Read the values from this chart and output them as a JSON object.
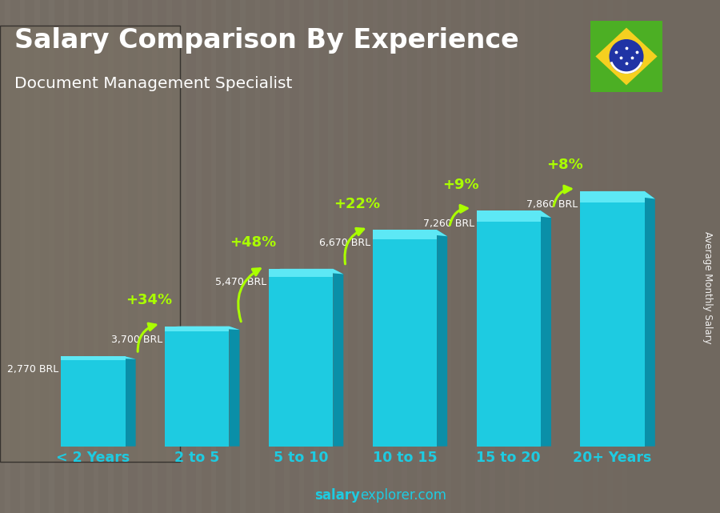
{
  "title": "Salary Comparison By Experience",
  "subtitle": "Document Management Specialist",
  "categories": [
    "< 2 Years",
    "2 to 5",
    "5 to 10",
    "10 to 15",
    "15 to 20",
    "20+ Years"
  ],
  "values": [
    2770,
    3700,
    5470,
    6670,
    7260,
    7860
  ],
  "value_labels": [
    "2,770 BRL",
    "3,700 BRL",
    "5,470 BRL",
    "6,670 BRL",
    "7,260 BRL",
    "7,860 BRL"
  ],
  "pct_labels": [
    "+34%",
    "+48%",
    "+22%",
    "+9%",
    "+8%"
  ],
  "bar_face_color": "#1ecbe1",
  "bar_top_color": "#5de8f5",
  "bar_side_color": "#0a8fa8",
  "bar_bottom_color": "#0a7a90",
  "bg_color": "#6b6b6b",
  "title_color": "#ffffff",
  "subtitle_color": "#ffffff",
  "value_label_color": "#ffffff",
  "pct_color": "#aaff00",
  "xlabel_color": "#1ecbe1",
  "footer_color": "#1ecbe1",
  "ylabel_text": "Average Monthly Salary",
  "ylim": [
    0,
    9800
  ],
  "flag_green": "#4caf24",
  "flag_yellow": "#f5d020",
  "flag_blue": "#2034a5",
  "flag_white": "#ffffff"
}
